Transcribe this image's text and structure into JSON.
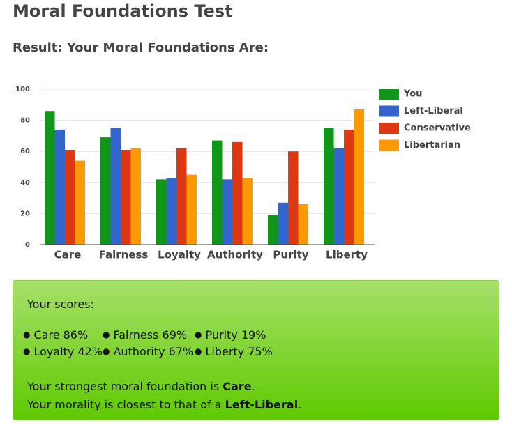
{
  "header": {
    "title": "Moral Foundations Test",
    "subtitle": "Result: Your Moral Foundations Are:"
  },
  "chart_data": {
    "type": "bar",
    "categories": [
      "Care",
      "Fairness",
      "Loyalty",
      "Authority",
      "Purity",
      "Liberty"
    ],
    "series": [
      {
        "name": "You",
        "color": "#109618",
        "values": [
          86,
          69,
          42,
          67,
          19,
          75
        ]
      },
      {
        "name": "Left-Liberal",
        "color": "#3366cc",
        "values": [
          74,
          75,
          43,
          42,
          27,
          62
        ]
      },
      {
        "name": "Conservative",
        "color": "#dc3912",
        "values": [
          61,
          61,
          62,
          66,
          60,
          74
        ]
      },
      {
        "name": "Libertarian",
        "color": "#ff9900",
        "values": [
          54,
          62,
          45,
          43,
          26,
          87
        ]
      }
    ],
    "ylim": [
      0,
      100
    ],
    "yticks": [
      0,
      20,
      40,
      60,
      80,
      100
    ],
    "grid": true,
    "legend": "right"
  },
  "scores_box": {
    "intro": "Your scores:",
    "scores": [
      "Care 86%",
      "Fairness 69%",
      "Purity 19%",
      "Loyalty 42%",
      "Authority 67%",
      "Liberty 75%"
    ],
    "strongest": {
      "prefix": "Your strongest moral foundation is ",
      "value": "Care",
      "suffix": "."
    },
    "closest": {
      "prefix": "Your morality is closest to that of a ",
      "value": "Left-Liberal",
      "suffix": "."
    }
  }
}
